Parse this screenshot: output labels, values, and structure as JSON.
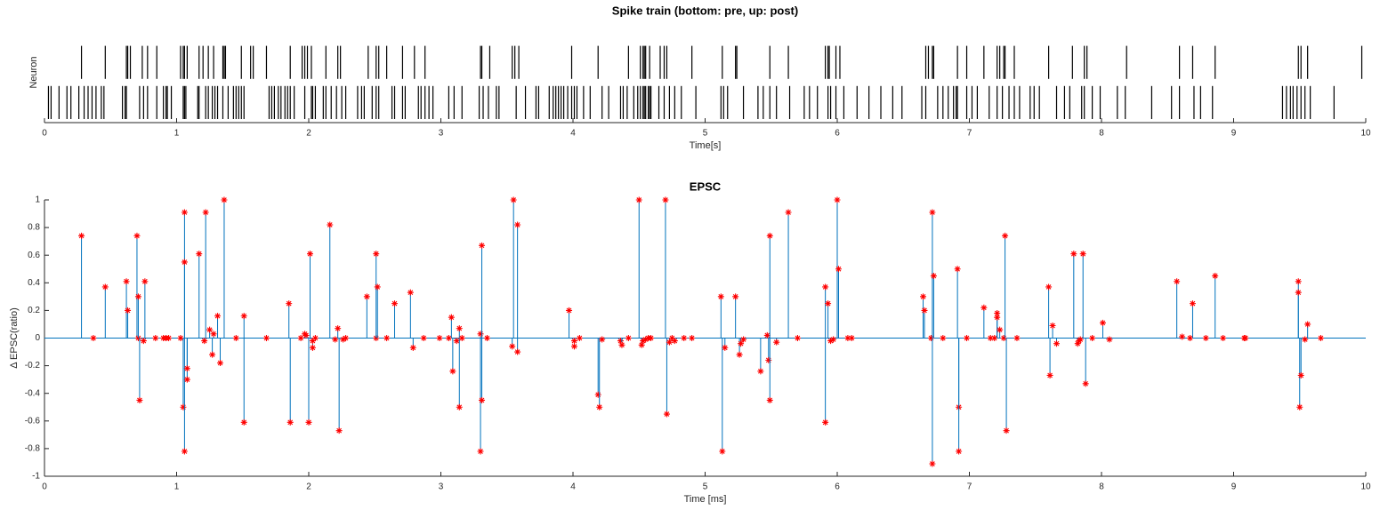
{
  "chart_data": [
    {
      "type": "raster",
      "title": "Spike train (bottom: pre, up: post)",
      "xlabel": "Time[s]",
      "ylabel": "Neuron",
      "xlim": [
        0,
        10
      ],
      "xticks": [
        0,
        1,
        2,
        3,
        4,
        5,
        6,
        7,
        8,
        9,
        10
      ],
      "color": "#000000",
      "series": [
        {
          "x": [
            0.03,
            0.05,
            0.11,
            0.17,
            0.2,
            0.26,
            0.3,
            0.33,
            0.36,
            0.39,
            0.43,
            0.45,
            0.59,
            0.61,
            0.62,
            0.72,
            0.75,
            0.78,
            0.85,
            0.9,
            0.92,
            0.93,
            0.96,
            1.05,
            1.06,
            1.07,
            1.16,
            1.17,
            1.22,
            1.24,
            1.27,
            1.29,
            1.31,
            1.35,
            1.39,
            1.43,
            1.45,
            1.47,
            1.49,
            1.51,
            1.7,
            1.72,
            1.74,
            1.77,
            1.79,
            1.82,
            1.84,
            1.86,
            1.89,
            1.97,
            2.02,
            2.03,
            2.05,
            2.11,
            2.13,
            2.17,
            2.21,
            2.25,
            2.28,
            2.37,
            2.4,
            2.42,
            2.48,
            2.51,
            2.53,
            2.63,
            2.65,
            2.71,
            2.73,
            2.83,
            2.85,
            2.88,
            2.91,
            2.94,
            3.06,
            3.1,
            3.16,
            3.29,
            3.32,
            3.36,
            3.42,
            3.44,
            3.57,
            3.64,
            3.72,
            3.74,
            3.82,
            3.85,
            3.87,
            3.89,
            3.91,
            3.93,
            3.96,
            3.99,
            4.01,
            4.03,
            4.08,
            4.13,
            4.22,
            4.27,
            4.36,
            4.38,
            4.41,
            4.46,
            4.49,
            4.51,
            4.53,
            4.54,
            4.55,
            4.57,
            4.58,
            4.59,
            4.65,
            4.69,
            4.73,
            4.77,
            4.82,
            4.93,
            5.12,
            5.14,
            5.17,
            5.29,
            5.4,
            5.44,
            5.49,
            5.54,
            5.64,
            5.75,
            5.79,
            5.85,
            5.93,
            5.95,
            5.99,
            6.05,
            6.15,
            6.24,
            6.33,
            6.42,
            6.49,
            6.64,
            6.67,
            6.76,
            6.8,
            6.84,
            6.88,
            6.9,
            6.91,
            6.98,
            7.02,
            7.06,
            7.15,
            7.21,
            7.25,
            7.3,
            7.34,
            7.38,
            7.46,
            7.49,
            7.53,
            7.66,
            7.72,
            7.76,
            7.85,
            7.87,
            7.93,
            7.99,
            8.12,
            8.18,
            8.38,
            8.53,
            8.59,
            8.7,
            8.75,
            8.84,
            9.37,
            9.4,
            9.43,
            9.45,
            9.48,
            9.51,
            9.54,
            9.58,
            9.76
          ]
        },
        {
          "x": [
            0.28,
            0.46,
            0.62,
            0.63,
            0.65,
            0.74,
            0.78,
            0.85,
            1.03,
            1.05,
            1.06,
            1.08,
            1.17,
            1.2,
            1.24,
            1.28,
            1.35,
            1.36,
            1.37,
            1.49,
            1.56,
            1.58,
            1.68,
            1.86,
            1.95,
            1.97,
            1.99,
            2.02,
            2.13,
            2.22,
            2.24,
            2.45,
            2.51,
            2.53,
            2.59,
            2.71,
            2.8,
            2.88,
            3.3,
            3.31,
            3.37,
            3.54,
            3.56,
            3.59,
            3.99,
            4.19,
            4.42,
            4.51,
            4.53,
            4.54,
            4.55,
            4.58,
            4.66,
            4.69,
            4.71,
            4.9,
            5.13,
            5.23,
            5.24,
            5.49,
            5.63,
            5.91,
            5.93,
            5.94,
            5.99,
            6.02,
            6.67,
            6.69,
            6.72,
            6.73,
            6.91,
            6.98,
            7.11,
            7.21,
            7.23,
            7.26,
            7.27,
            7.34,
            7.6,
            7.78,
            7.87,
            7.89,
            8.19,
            8.59,
            8.69,
            8.86,
            9.49,
            9.51,
            9.56,
            9.97
          ]
        }
      ]
    },
    {
      "type": "stem",
      "title": "EPSC",
      "xlabel": "Time [ms]",
      "ylabel": "Δ EPSC(ratio)",
      "xlim": [
        0,
        10
      ],
      "xticks": [
        0,
        1,
        2,
        3,
        4,
        5,
        6,
        7,
        8,
        9,
        10
      ],
      "ylim": [
        -1,
        1
      ],
      "yticks": [
        -1,
        -0.8,
        -0.6,
        -0.4,
        -0.2,
        0,
        0.2,
        0.4,
        0.6,
        0.8,
        1
      ],
      "color": "#0072bd",
      "marker_color": "#ff0000",
      "x": [
        0.28,
        0.37,
        0.46,
        0.62,
        0.63,
        0.7,
        0.71,
        0.71,
        0.72,
        0.75,
        0.76,
        0.84,
        0.9,
        0.92,
        0.94,
        1.03,
        1.05,
        1.06,
        1.06,
        1.06,
        1.08,
        1.08,
        1.17,
        1.21,
        1.22,
        1.25,
        1.27,
        1.28,
        1.31,
        1.33,
        1.36,
        1.45,
        1.51,
        1.51,
        1.68,
        1.85,
        1.86,
        1.94,
        1.97,
        1.98,
        2.0,
        2.01,
        2.03,
        2.03,
        2.05,
        2.16,
        2.2,
        2.22,
        2.23,
        2.26,
        2.28,
        2.44,
        2.51,
        2.51,
        2.52,
        2.59,
        2.65,
        2.77,
        2.79,
        2.87,
        2.99,
        3.06,
        3.08,
        3.09,
        3.12,
        3.14,
        3.14,
        3.16,
        3.3,
        3.3,
        3.31,
        3.31,
        3.35,
        3.54,
        3.55,
        3.58,
        3.58,
        3.97,
        4.01,
        4.01,
        4.05,
        4.19,
        4.2,
        4.22,
        4.36,
        4.37,
        4.42,
        4.5,
        4.52,
        4.53,
        4.55,
        4.57,
        4.59,
        4.7,
        4.71,
        4.73,
        4.75,
        4.77,
        4.84,
        4.9,
        5.12,
        5.13,
        5.15,
        5.23,
        5.26,
        5.27,
        5.29,
        5.42,
        5.47,
        5.48,
        5.49,
        5.49,
        5.54,
        5.63,
        5.7,
        5.91,
        5.91,
        5.93,
        5.95,
        5.97,
        6.0,
        6.01,
        6.08,
        6.11,
        6.65,
        6.66,
        6.71,
        6.72,
        6.72,
        6.73,
        6.8,
        6.91,
        6.92,
        6.92,
        6.98,
        7.11,
        7.16,
        7.19,
        7.21,
        7.21,
        7.23,
        7.26,
        7.27,
        7.28,
        7.36,
        7.6,
        7.61,
        7.63,
        7.66,
        7.79,
        7.82,
        7.83,
        7.84,
        7.86,
        7.88,
        7.93,
        8.01,
        8.06,
        8.57,
        8.61,
        8.67,
        8.69,
        8.79,
        8.86,
        8.92,
        9.08,
        9.09,
        9.49,
        9.49,
        9.5,
        9.51,
        9.54,
        9.56,
        9.66
      ],
      "values": [
        0.74,
        0,
        0.37,
        0.41,
        0.2,
        0.74,
        0,
        0.3,
        -0.45,
        -0.02,
        0.41,
        0,
        0,
        0,
        0,
        0,
        -0.5,
        0.91,
        0.55,
        -0.82,
        -0.3,
        -0.22,
        0.61,
        -0.02,
        0.91,
        0.06,
        -0.12,
        0.03,
        0.16,
        -0.18,
        1.0,
        0,
        0.16,
        -0.61,
        0,
        0.25,
        -0.61,
        0,
        0.03,
        0.02,
        -0.61,
        0.61,
        -0.07,
        -0.02,
        0,
        0.82,
        -0.01,
        0.07,
        -0.67,
        -0.01,
        0,
        0.3,
        0,
        0.61,
        0.37,
        0,
        0.25,
        0.33,
        -0.07,
        0,
        0,
        0,
        0.15,
        -0.24,
        -0.02,
        0.07,
        -0.5,
        0,
        -0.82,
        0.03,
        0.67,
        -0.45,
        0,
        -0.06,
        1.0,
        -0.1,
        0.82,
        0.2,
        -0.06,
        -0.02,
        0,
        -0.41,
        -0.5,
        -0.01,
        -0.02,
        -0.05,
        0,
        1.0,
        -0.05,
        -0.02,
        -0.01,
        0,
        0,
        1.0,
        -0.55,
        -0.03,
        0,
        -0.02,
        0,
        0,
        0.3,
        -0.82,
        -0.07,
        0.3,
        -0.12,
        -0.04,
        -0.01,
        -0.24,
        0.02,
        -0.16,
        0.74,
        -0.45,
        -0.03,
        0.91,
        0,
        0.37,
        -0.61,
        0.25,
        -0.02,
        -0.01,
        1.0,
        0.5,
        0,
        0,
        0.3,
        0.2,
        0,
        0.91,
        -0.91,
        0.45,
        0,
        0.5,
        -0.5,
        -0.82,
        0,
        0.22,
        0,
        0,
        0.18,
        0.15,
        0.06,
        0,
        0.74,
        -0.67,
        0,
        0.37,
        -0.27,
        0.09,
        -0.04,
        0.61,
        -0.04,
        -0.02,
        -0.01,
        0.61,
        -0.33,
        0,
        0.11,
        -0.01,
        0.41,
        0.01,
        0,
        0.25,
        0,
        0.45,
        0,
        0,
        0,
        0.41,
        0.33,
        -0.5,
        -0.27,
        -0.01,
        0.1,
        0
      ]
    }
  ]
}
